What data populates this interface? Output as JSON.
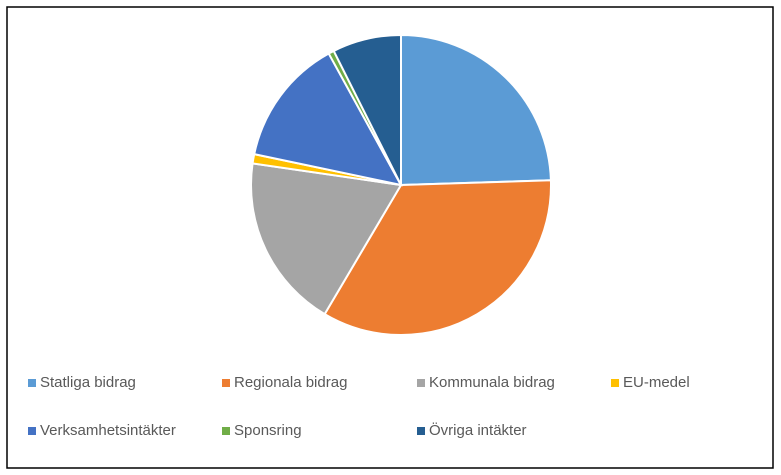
{
  "chart_data": {
    "type": "pie",
    "categories": [
      "Statliga bidrag",
      "Regionala bidrag",
      "Kommunala bidrag",
      "EU-medel",
      "Verksamhetsintäkter",
      "Sponsring",
      "Övriga intäkter"
    ],
    "values": [
      24.5,
      34,
      18.8,
      1,
      13.7,
      0.6,
      7.4
    ],
    "colors": [
      "#5b9bd5",
      "#ed7d31",
      "#a5a5a5",
      "#ffc000",
      "#4472c4",
      "#70ad47",
      "#255e91"
    ],
    "legend": "bottom"
  }
}
